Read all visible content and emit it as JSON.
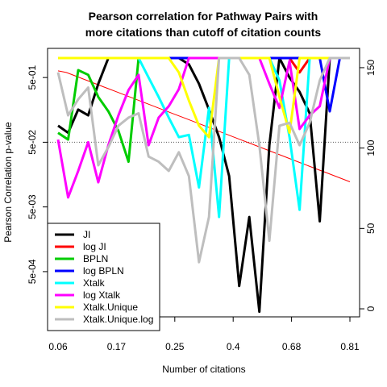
{
  "chart_data": {
    "type": "line",
    "title": "Pearson correlation for Pathway Pairs with\nmore citations than cutoff of citation counts",
    "xlabel": "Number of citations",
    "ylabel": "Pearson Correlation p-value",
    "x_ticks": [
      "0.06",
      "0.17",
      "0.25",
      "0.4",
      "0.68",
      "0.81"
    ],
    "y_left_ticks": [
      "5e-04",
      "5e-03",
      "5e-02",
      "5e-01"
    ],
    "y_left_scale": "log",
    "y_left_range": [
      0.0001,
      1.0
    ],
    "y_right_ticks": [
      0,
      50,
      100,
      150
    ],
    "y_right_range": [
      -5,
      162
    ],
    "reference_line": {
      "y": 0.05,
      "style": "dotted",
      "color": "#555555"
    },
    "counts_series": {
      "name": "",
      "axis": "right",
      "color": "#ff0000",
      "width": 1,
      "values": [
        148,
        147,
        145,
        143,
        141,
        139,
        137,
        135,
        133,
        131,
        129,
        127,
        125,
        123,
        121,
        119,
        117,
        115,
        113,
        111,
        109,
        107,
        105,
        103,
        101,
        99,
        97,
        95,
        93,
        91,
        89,
        87,
        85,
        83,
        81,
        79
      ]
    },
    "series": [
      {
        "name": "JI",
        "color": "#000000",
        "values": [
          0.09,
          0.07,
          0.16,
          0.13,
          0.4,
          1.0,
          1.0,
          1.0,
          1.0,
          1.0,
          1.0,
          1.0,
          1.0,
          0.8,
          0.4,
          0.16,
          0.06,
          0.015,
          0.0003,
          0.0035,
          0.00012,
          0.045,
          1.0,
          0.5,
          0.3,
          0.14,
          0.003,
          1.0,
          1.0,
          1.0
        ]
      },
      {
        "name": "log JI",
        "color": "#ff0000",
        "values": [
          1.0,
          1.0,
          1.0,
          1.0,
          1.0,
          1.0,
          1.0,
          1.0,
          1.0,
          1.0,
          1.0,
          1.0,
          1.0,
          1.0,
          1.0,
          1.0,
          1.0,
          1.0,
          1.0,
          1.0,
          1.0,
          1.0,
          1.0,
          1.0,
          0.6,
          1.0,
          1.0,
          1.0,
          1.0,
          1.0
        ]
      },
      {
        "name": "BPLN",
        "color": "#00cc00",
        "values": [
          0.07,
          0.055,
          0.65,
          0.55,
          0.25,
          0.15,
          0.075,
          0.025,
          1.0,
          1.0,
          1.0,
          1.0,
          1.0,
          1.0,
          1.0,
          1.0,
          1.0,
          1.0,
          1.0,
          1.0,
          1.0,
          1.0,
          1.0,
          1.0,
          1.0,
          1.0,
          1.0,
          1.0,
          1.0,
          1.0
        ]
      },
      {
        "name": "log BPLN",
        "color": "#0000ff",
        "values": [
          1.0,
          1.0,
          1.0,
          1.0,
          1.0,
          1.0,
          1.0,
          1.0,
          1.0,
          1.0,
          1.0,
          1.0,
          1.0,
          1.0,
          1.0,
          1.0,
          1.0,
          1.0,
          1.0,
          1.0,
          1.0,
          1.0,
          1.0,
          1.0,
          1.0,
          1.0,
          1.0,
          0.15,
          1.0,
          1.0
        ]
      },
      {
        "name": "Xtalk",
        "color": "#00ffff",
        "values": [
          1.0,
          1.0,
          1.0,
          1.0,
          1.0,
          1.0,
          1.0,
          1.0,
          1.0,
          0.5,
          0.25,
          0.12,
          0.06,
          0.065,
          0.01,
          0.17,
          0.0035,
          1.0,
          1.0,
          1.0,
          1.0,
          1.0,
          0.45,
          0.06,
          0.0045,
          1.0,
          1.0,
          1.0,
          1.0,
          1.0
        ]
      },
      {
        "name": "log Xtalk",
        "color": "#ff00ff",
        "values": [
          0.055,
          0.007,
          0.018,
          0.05,
          0.012,
          0.045,
          0.13,
          0.32,
          0.55,
          0.045,
          0.12,
          0.18,
          0.33,
          1.0,
          1.0,
          1.0,
          1.0,
          1.0,
          1.0,
          1.0,
          1.0,
          0.4,
          0.17,
          0.9,
          0.08,
          0.13,
          0.18,
          1.0,
          1.0,
          1.0
        ]
      },
      {
        "name": "Xtalk.Unique",
        "color": "#ffff00",
        "values": [
          1.0,
          1.0,
          1.0,
          1.0,
          1.0,
          1.0,
          1.0,
          1.0,
          1.0,
          1.0,
          1.0,
          1.0,
          0.6,
          0.22,
          0.09,
          0.06,
          1.0,
          1.0,
          1.0,
          1.0,
          1.0,
          1.0,
          0.25,
          0.07,
          1.0,
          1.0,
          1.0,
          1.0,
          1.0,
          1.0
        ]
      },
      {
        "name": "Xtalk.Unique.log",
        "color": "#bebebe",
        "values": [
          0.6,
          0.13,
          0.23,
          0.35,
          0.022,
          0.042,
          0.09,
          0.12,
          0.14,
          0.03,
          0.025,
          0.018,
          0.035,
          0.015,
          0.0007,
          0.0035,
          1.0,
          1.0,
          1.0,
          0.55,
          0.045,
          0.0015,
          0.09,
          0.1,
          0.045,
          0.1,
          0.45,
          1.0,
          1.0,
          1.0
        ]
      }
    ]
  }
}
